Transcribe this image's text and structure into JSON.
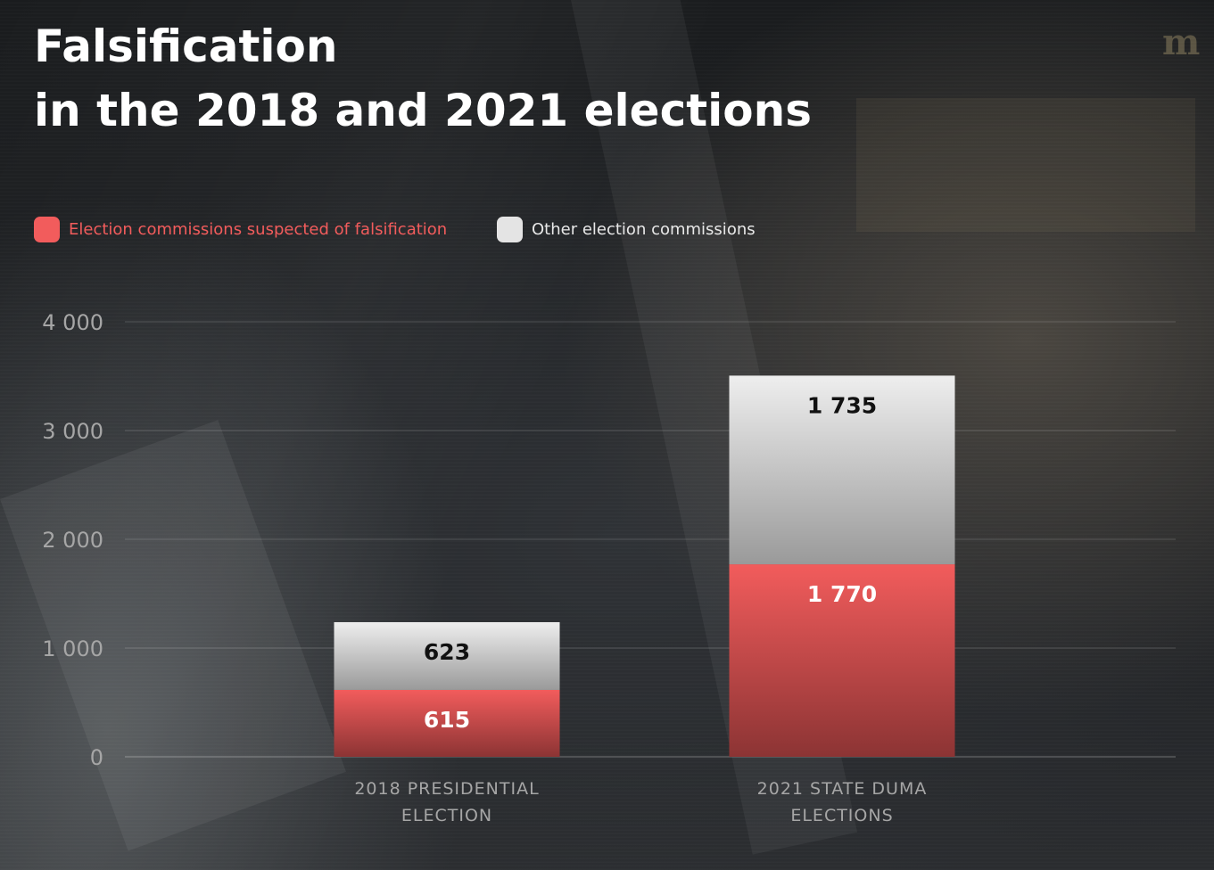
{
  "brand": {
    "logo_text": "m"
  },
  "colors": {
    "falsified": "#f25c5c",
    "other": "#e4e4e4",
    "background": "#1a1c1e",
    "axis_text": "#a6a6a6"
  },
  "chart_data": {
    "type": "bar",
    "stacked": true,
    "title": "Falsification",
    "subtitle": "in the 2018 and 2021 elections",
    "categories": [
      "2018 PRESIDENTIAL ELECTION",
      "2021 STATE DUMA ELECTIONS"
    ],
    "category_lines": [
      [
        "2018 PRESIDENTIAL",
        "ELECTION"
      ],
      [
        "2021 STATE DUMA",
        "ELECTIONS"
      ]
    ],
    "series": [
      {
        "name": "Election commissions suspected of falsification",
        "values": [
          615,
          1770
        ],
        "labels": [
          "615",
          "1 770"
        ]
      },
      {
        "name": "Other election commissions",
        "values": [
          623,
          1735
        ],
        "labels": [
          "623",
          "1 735"
        ]
      }
    ],
    "ylim": [
      0,
      4000
    ],
    "yticks": [
      0,
      1000,
      2000,
      3000,
      4000
    ],
    "ytick_labels": [
      "0",
      "1 000",
      "2 000",
      "3 000",
      "4 000"
    ],
    "grid": true,
    "legend_position": "top-left"
  }
}
